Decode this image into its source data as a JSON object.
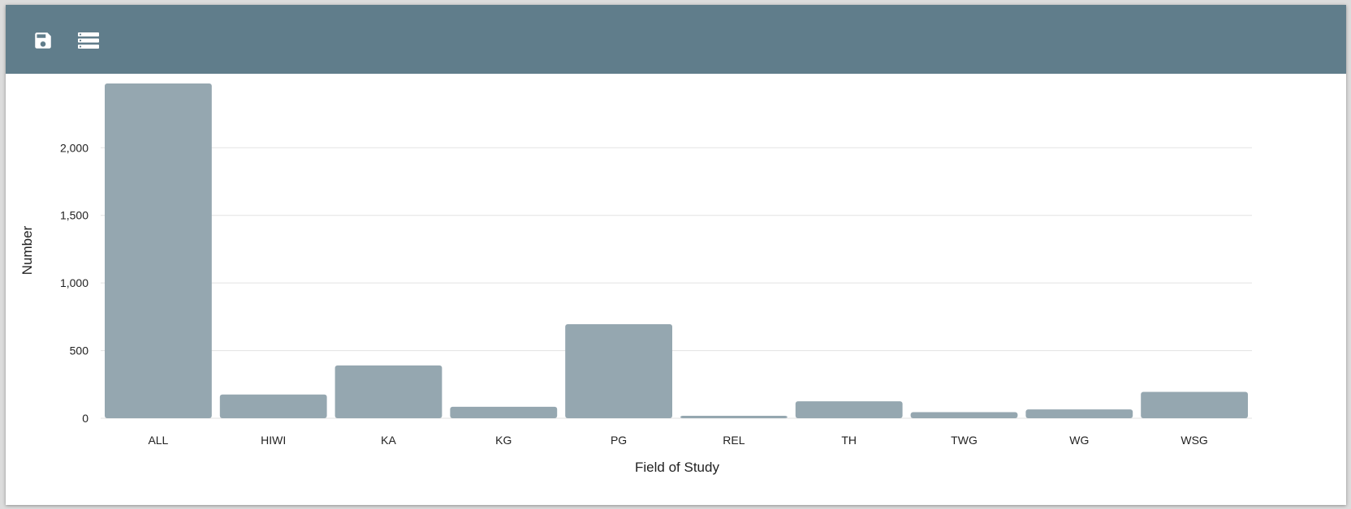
{
  "toolbar": {
    "background": "#607d8b",
    "buttons": [
      {
        "icon": "save-icon"
      },
      {
        "icon": "list-icon"
      }
    ]
  },
  "chart_data": {
    "type": "bar",
    "categories": [
      "ALL",
      "HIWI",
      "KA",
      "KG",
      "PG",
      "REL",
      "TH",
      "TWG",
      "WG",
      "WSG"
    ],
    "values": [
      2475,
      175,
      390,
      85,
      695,
      15,
      125,
      45,
      65,
      195
    ],
    "xlabel": "Field of Study",
    "ylabel": "Number",
    "ylim": [
      0,
      2475
    ],
    "yticks": [
      0,
      500,
      1000,
      1500,
      2000
    ],
    "ytick_labels": [
      "0",
      "500",
      "1,000",
      "1,500",
      "2,000"
    ],
    "grid": true,
    "bar_color": "#95a7b0",
    "grid_color": "#e3e3e3"
  }
}
